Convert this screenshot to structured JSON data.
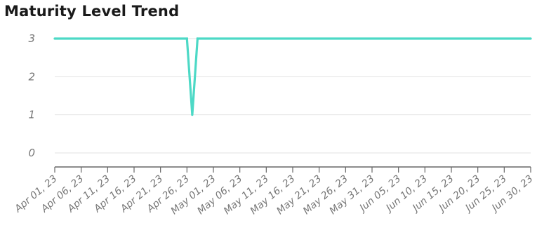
{
  "chart_data": {
    "type": "line",
    "title": "Maturity Level Trend",
    "xlabel": "",
    "ylabel": "",
    "ylim": [
      0,
      3
    ],
    "y_ticks": [
      "0",
      "1",
      "2",
      "3"
    ],
    "x_range": [
      "2023-04-01",
      "2023-06-30"
    ],
    "x_ticks": [
      {
        "date": "2023-04-01",
        "label": "Apr 01, 23"
      },
      {
        "date": "2023-04-06",
        "label": "Apr 06, 23"
      },
      {
        "date": "2023-04-11",
        "label": "Apr 11, 23"
      },
      {
        "date": "2023-04-16",
        "label": "Apr 16, 23"
      },
      {
        "date": "2023-04-21",
        "label": "Apr 21, 23"
      },
      {
        "date": "2023-04-26",
        "label": "Apr 26, 23"
      },
      {
        "date": "2023-05-01",
        "label": "May 01, 23"
      },
      {
        "date": "2023-05-06",
        "label": "May 06, 23"
      },
      {
        "date": "2023-05-11",
        "label": "May 11, 23"
      },
      {
        "date": "2023-05-16",
        "label": "May 16, 23"
      },
      {
        "date": "2023-05-21",
        "label": "May 21, 23"
      },
      {
        "date": "2023-05-26",
        "label": "May 26, 23"
      },
      {
        "date": "2023-05-31",
        "label": "May 31, 23"
      },
      {
        "date": "2023-06-05",
        "label": "Jun 05, 23"
      },
      {
        "date": "2023-06-10",
        "label": "Jun 10, 23"
      },
      {
        "date": "2023-06-15",
        "label": "Jun 15, 23"
      },
      {
        "date": "2023-06-20",
        "label": "Jun 20, 23"
      },
      {
        "date": "2023-06-25",
        "label": "Jun 25, 23"
      },
      {
        "date": "2023-06-30",
        "label": "Jun 30, 23"
      }
    ],
    "grid": true,
    "legend": "none",
    "series": [
      {
        "color": "#4dd9c6",
        "points": [
          {
            "x": "2023-04-01",
            "y": 3
          },
          {
            "x": "2023-04-26",
            "y": 3
          },
          {
            "x": "2023-04-27",
            "y": 1
          },
          {
            "x": "2023-04-28",
            "y": 3
          },
          {
            "x": "2023-06-30",
            "y": 3
          }
        ]
      }
    ]
  }
}
